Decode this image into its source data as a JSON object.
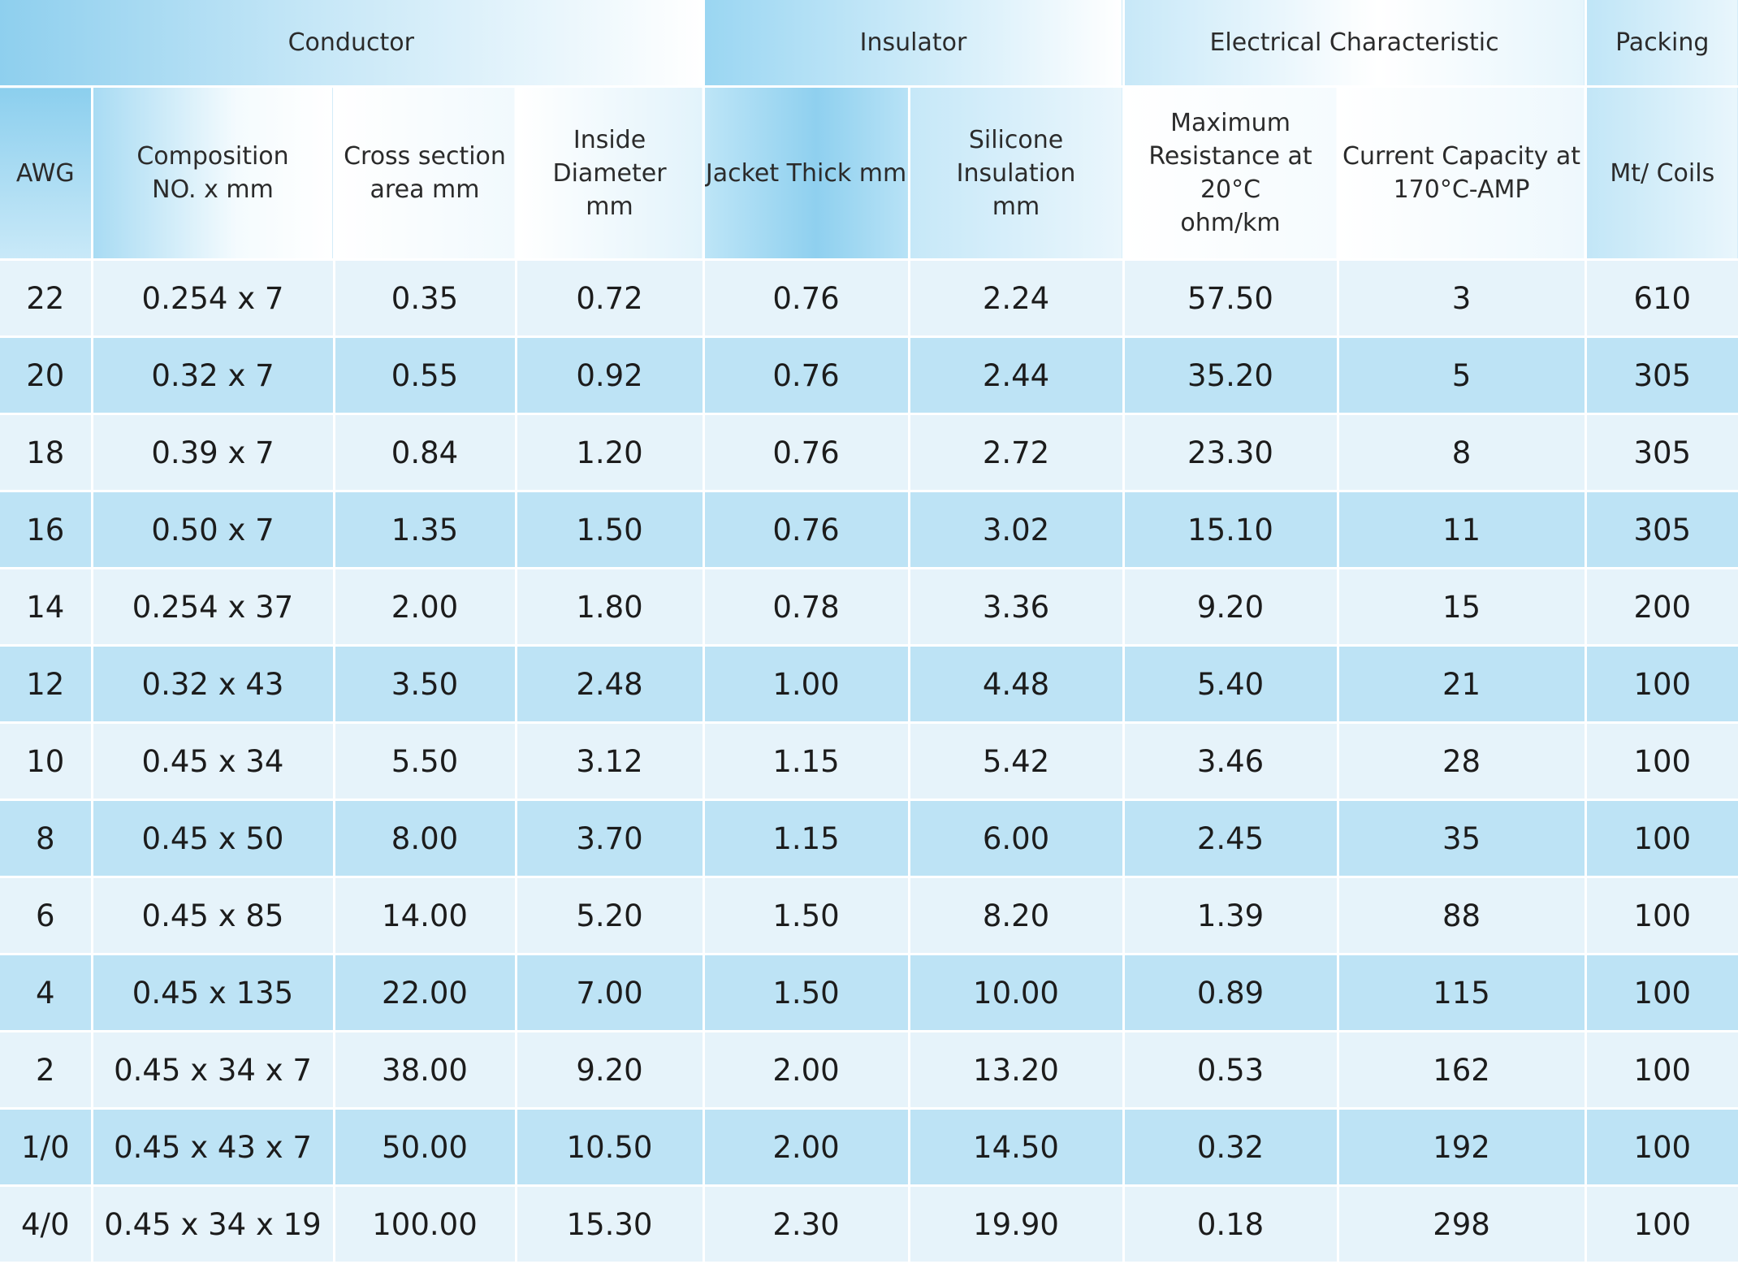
{
  "table": {
    "groups": [
      {
        "label": "Conductor",
        "span": 4
      },
      {
        "label": "Insulator",
        "span": 2
      },
      {
        "label": "Electrical Characteristic",
        "span": 2
      },
      {
        "label": "Packing",
        "span": 1
      }
    ],
    "columns": [
      {
        "line1": "AWG",
        "line2": "",
        "line3": ""
      },
      {
        "line1": "Composition",
        "line2": "NO. x mm",
        "line3": ""
      },
      {
        "line1": "Cross section",
        "line2": "area mm",
        "line3": ""
      },
      {
        "line1": "Inside Diameter",
        "line2": "mm",
        "line3": ""
      },
      {
        "line1": "Jacket Thick mm",
        "line2": "",
        "line3": ""
      },
      {
        "line1": "Silicone",
        "line2": "Insulation",
        "line3": "mm"
      },
      {
        "line1": "Maximum",
        "line2": "Resistance at 20°C",
        "line3": "ohm/km"
      },
      {
        "line1": "Current Capacity at",
        "line2": "170°C-AMP",
        "line3": ""
      },
      {
        "line1": "Mt/ Coils",
        "line2": "",
        "line3": ""
      }
    ],
    "rows": [
      [
        "22",
        "0.254 x 7",
        "0.35",
        "0.72",
        "0.76",
        "2.24",
        "57.50",
        "3",
        "610"
      ],
      [
        "20",
        "0.32 x 7",
        "0.55",
        "0.92",
        "0.76",
        "2.44",
        "35.20",
        "5",
        "305"
      ],
      [
        "18",
        "0.39 x 7",
        "0.84",
        "1.20",
        "0.76",
        "2.72",
        "23.30",
        "8",
        "305"
      ],
      [
        "16",
        "0.50 x 7",
        "1.35",
        "1.50",
        "0.76",
        "3.02",
        "15.10",
        "11",
        "305"
      ],
      [
        "14",
        "0.254 x 37",
        "2.00",
        "1.80",
        "0.78",
        "3.36",
        "9.20",
        "15",
        "200"
      ],
      [
        "12",
        "0.32 x 43",
        "3.50",
        "2.48",
        "1.00",
        "4.48",
        "5.40",
        "21",
        "100"
      ],
      [
        "10",
        "0.45 x 34",
        "5.50",
        "3.12",
        "1.15",
        "5.42",
        "3.46",
        "28",
        "100"
      ],
      [
        "8",
        "0.45 x 50",
        "8.00",
        "3.70",
        "1.15",
        "6.00",
        "2.45",
        "35",
        "100"
      ],
      [
        "6",
        "0.45 x 85",
        "14.00",
        "5.20",
        "1.50",
        "8.20",
        "1.39",
        "88",
        "100"
      ],
      [
        "4",
        "0.45 x 135",
        "22.00",
        "7.00",
        "1.50",
        "10.00",
        "0.89",
        "115",
        "100"
      ],
      [
        "2",
        "0.45 x 34 x 7",
        "38.00",
        "9.20",
        "2.00",
        "13.20",
        "0.53",
        "162",
        "100"
      ],
      [
        "1/0",
        "0.45 x 43 x 7",
        "50.00",
        "10.50",
        "2.00",
        "14.50",
        "0.32",
        "192",
        "100"
      ],
      [
        "4/0",
        "0.45 x 34 x 19",
        "100.00",
        "15.30",
        "2.30",
        "19.90",
        "0.18",
        "298",
        "100"
      ]
    ]
  }
}
